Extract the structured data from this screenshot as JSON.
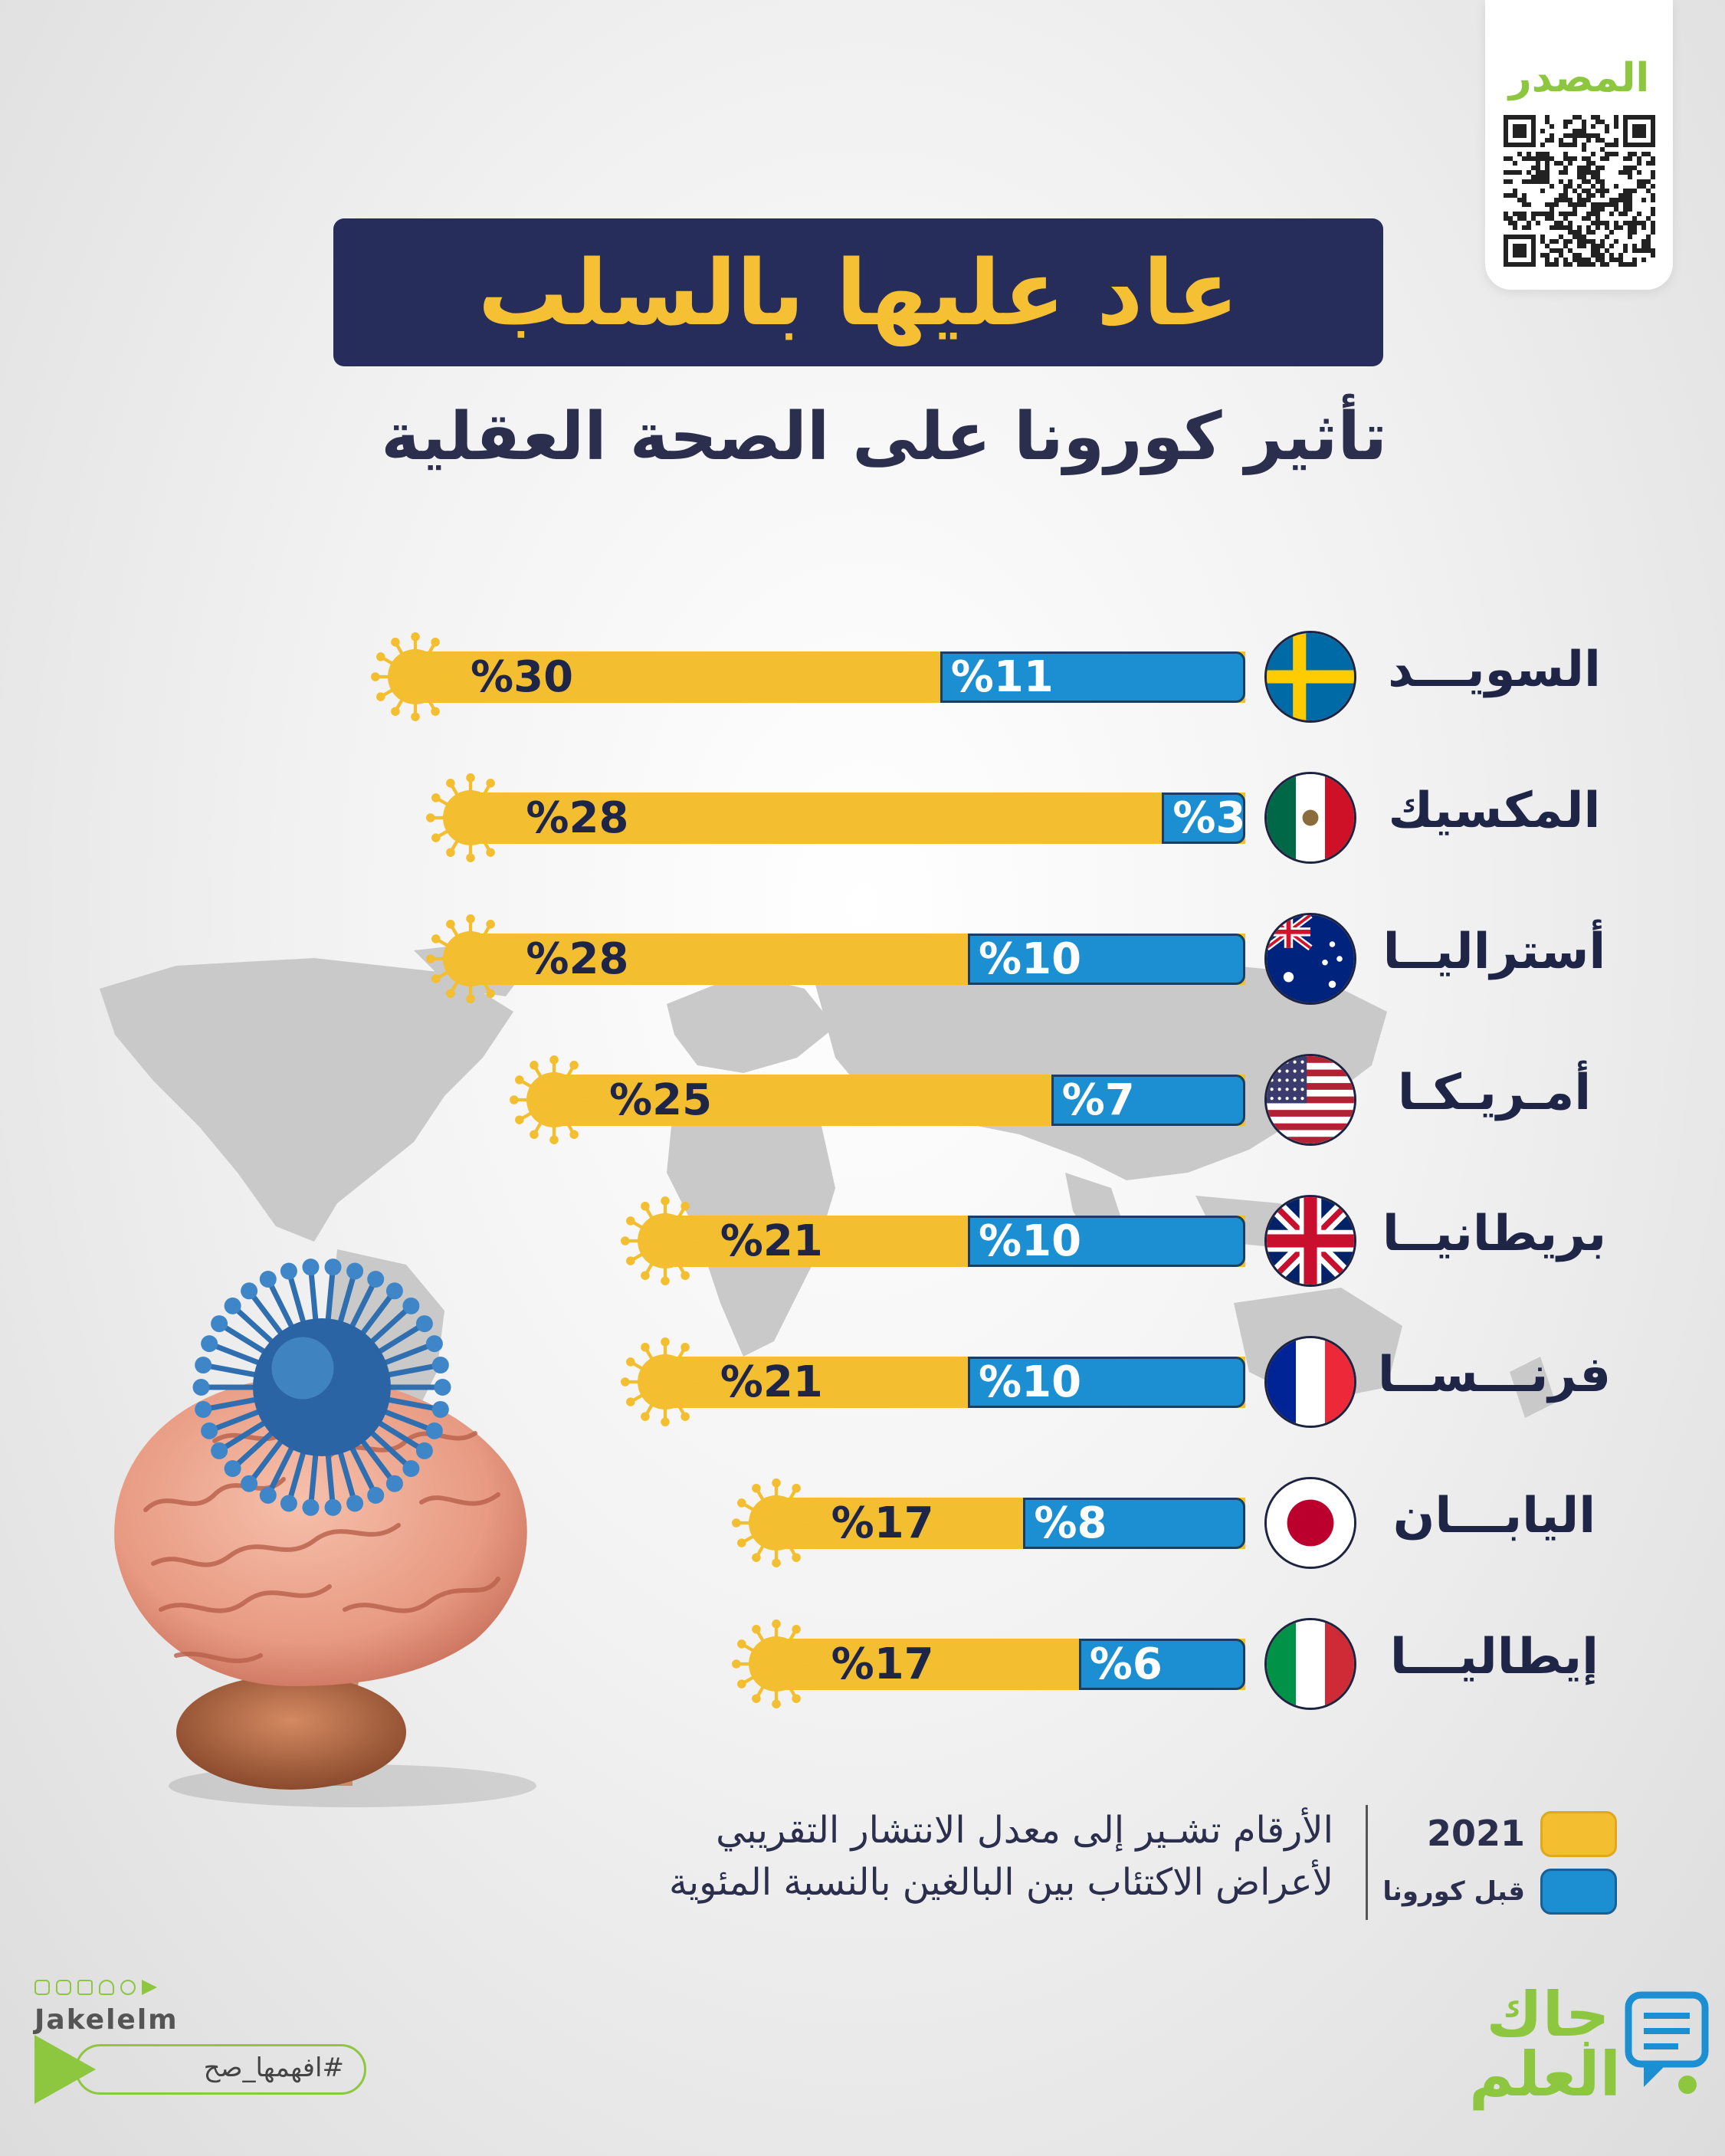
{
  "source": {
    "label": "المصدر",
    "icon": "qr-code-icon"
  },
  "title": "عاد عليها بالسلب",
  "subtitle": "تأثير كورونا على الصحة العقلية",
  "chart_data": {
    "type": "bar",
    "orientation": "horizontal",
    "unit": "%",
    "categories": [
      "السويـــد",
      "المكسيك",
      "أستراليــا",
      "أمـريـكـا",
      "بريطانيــا",
      "فرنـــســا",
      "اليابـــان",
      "إيطاليـــا"
    ],
    "series": [
      {
        "name": "قبل كورونا",
        "color": "#1b8fd2",
        "values": [
          11,
          3,
          10,
          7,
          10,
          10,
          8,
          6
        ]
      },
      {
        "name": "2021",
        "color": "#f3be2f",
        "values": [
          30,
          28,
          28,
          25,
          21,
          21,
          17,
          17
        ]
      }
    ],
    "value_labels": {
      "before": [
        "%11",
        "%3",
        "%10",
        "%7",
        "%10",
        "%10",
        "%8",
        "%6"
      ],
      "y2021": [
        "%30",
        "%28",
        "%28",
        "%25",
        "%21",
        "%21",
        "%17",
        "%17"
      ]
    },
    "flags": [
      "sweden",
      "mexico",
      "australia",
      "usa",
      "uk",
      "france",
      "japan",
      "italy"
    ]
  },
  "legend": {
    "y2021": {
      "label": "2021",
      "color": "#f3be2f"
    },
    "before": {
      "label": "قبل كورونا",
      "color": "#1b8fd2"
    }
  },
  "note": {
    "line1": "الأرقام تشـير إلى معدل الانتشار التقريبي",
    "line2": "لأعراض الاكتئاب بين البالغين بالنسبة المئوية"
  },
  "brand": {
    "handle": "Jakelelm",
    "hashtag": "#افهمها_صح",
    "logo_line1": "جاك",
    "logo_line2": "العلم",
    "social_icons": [
      "facebook-icon",
      "instagram-icon",
      "linkedin-icon",
      "snapchat-icon",
      "twitter-icon",
      "telegram-icon"
    ]
  },
  "colors": {
    "accent_yellow": "#f3be2f",
    "accent_blue": "#1b8fd2",
    "navy": "#262d5a",
    "green": "#8dc63f"
  }
}
